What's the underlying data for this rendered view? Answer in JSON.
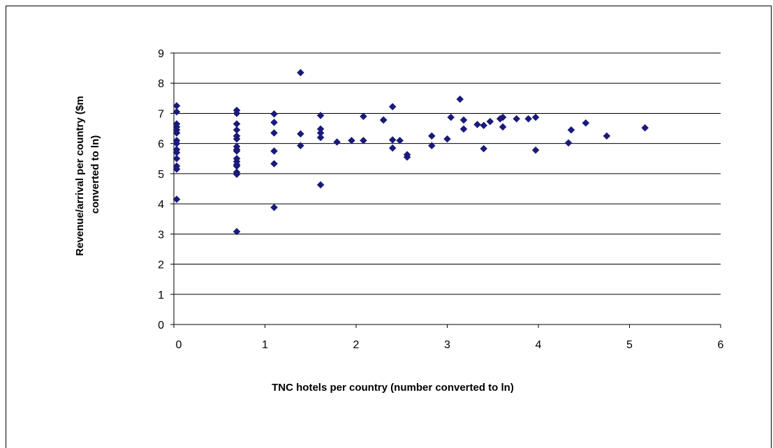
{
  "chart_data": {
    "type": "scatter",
    "title": "",
    "xlabel": "TNC hotels per country (number converted to ln)",
    "ylabel_lines": [
      "Revenue/arrival per country ($m",
      "converted to ln)"
    ],
    "xlim": [
      0,
      6
    ],
    "ylim": [
      0,
      9
    ],
    "x_ticks": [
      0,
      1,
      2,
      3,
      4,
      5,
      6
    ],
    "y_ticks": [
      0,
      1,
      2,
      3,
      4,
      5,
      6,
      7,
      8,
      9
    ],
    "grid": "horizontal",
    "legend": "none",
    "marker": "diamond",
    "color": "#1a1a7a",
    "series": [
      {
        "points": [
          [
            0,
            7.25
          ],
          [
            0,
            7.05
          ],
          [
            0,
            6.65
          ],
          [
            0,
            6.55
          ],
          [
            0,
            6.45
          ],
          [
            0,
            6.35
          ],
          [
            0,
            6.1
          ],
          [
            0,
            6.0
          ],
          [
            0,
            5.8
          ],
          [
            0,
            5.7
          ],
          [
            0,
            5.5
          ],
          [
            0,
            5.25
          ],
          [
            0,
            5.15
          ],
          [
            0,
            4.15
          ],
          [
            0.69,
            7.1
          ],
          [
            0.69,
            7.0
          ],
          [
            0.69,
            6.65
          ],
          [
            0.69,
            6.45
          ],
          [
            0.69,
            6.25
          ],
          [
            0.69,
            6.15
          ],
          [
            0.69,
            5.9
          ],
          [
            0.69,
            5.8
          ],
          [
            0.69,
            5.75
          ],
          [
            0.69,
            5.5
          ],
          [
            0.69,
            5.4
          ],
          [
            0.69,
            5.3
          ],
          [
            0.69,
            5.25
          ],
          [
            0.69,
            5.05
          ],
          [
            0.69,
            4.98
          ],
          [
            0.69,
            3.08
          ],
          [
            1.1,
            6.98
          ],
          [
            1.1,
            6.7
          ],
          [
            1.1,
            6.35
          ],
          [
            1.1,
            5.75
          ],
          [
            1.1,
            5.33
          ],
          [
            1.1,
            3.88
          ],
          [
            1.39,
            8.35
          ],
          [
            1.39,
            6.32
          ],
          [
            1.39,
            5.93
          ],
          [
            1.61,
            6.93
          ],
          [
            1.61,
            6.48
          ],
          [
            1.61,
            6.35
          ],
          [
            1.61,
            6.2
          ],
          [
            1.61,
            4.63
          ],
          [
            1.79,
            6.05
          ],
          [
            1.95,
            6.1
          ],
          [
            2.08,
            6.9
          ],
          [
            2.08,
            6.1
          ],
          [
            2.3,
            6.78
          ],
          [
            2.3,
            6.78
          ],
          [
            2.4,
            7.22
          ],
          [
            2.4,
            6.12
          ],
          [
            2.4,
            5.85
          ],
          [
            2.48,
            6.1
          ],
          [
            2.56,
            5.63
          ],
          [
            2.56,
            5.55
          ],
          [
            2.83,
            6.25
          ],
          [
            2.83,
            5.93
          ],
          [
            3.0,
            6.15
          ],
          [
            3.04,
            6.87
          ],
          [
            3.14,
            7.47
          ],
          [
            3.18,
            6.78
          ],
          [
            3.18,
            6.48
          ],
          [
            3.33,
            6.63
          ],
          [
            3.4,
            6.6
          ],
          [
            3.4,
            5.83
          ],
          [
            3.47,
            6.73
          ],
          [
            3.58,
            6.82
          ],
          [
            3.58,
            6.82
          ],
          [
            3.61,
            6.87
          ],
          [
            3.61,
            6.55
          ],
          [
            3.76,
            6.82
          ],
          [
            3.89,
            6.82
          ],
          [
            3.97,
            6.87
          ],
          [
            3.97,
            5.78
          ],
          [
            4.33,
            6.02
          ],
          [
            4.36,
            6.45
          ],
          [
            4.52,
            6.68
          ],
          [
            4.75,
            6.25
          ],
          [
            5.17,
            6.52
          ]
        ]
      }
    ]
  }
}
